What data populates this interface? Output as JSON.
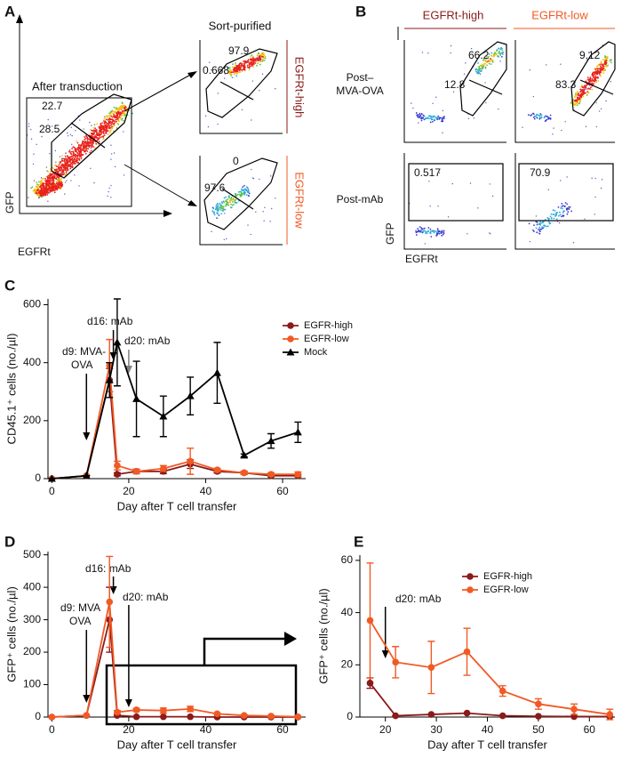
{
  "panel_labels": [
    "A",
    "B",
    "C",
    "D",
    "E"
  ],
  "flow": {
    "a": {
      "title": "After transduction",
      "gates": [
        "22.7",
        "28.5"
      ],
      "x_label": "EGFRt",
      "y_label": "GFP",
      "sorted_title": "Sort-purified",
      "sorted": [
        {
          "label": "EGFRt-high",
          "gates": [
            "97.9",
            "0.668"
          ]
        },
        {
          "label": "EGFRt-low",
          "gates": [
            "0",
            "97.6"
          ]
        }
      ]
    },
    "b": {
      "columns": [
        "EGFRt-high",
        "EGFRt-low"
      ],
      "x_label": "EGFRt",
      "y_label": "GFP",
      "rows": [
        {
          "label": [
            "Post–",
            "MVA-OVA"
          ],
          "gates": [
            [
              "66.2",
              "12.8"
            ],
            [
              "9.12",
              "83.3"
            ]
          ]
        },
        {
          "label": [
            "Post-mAb"
          ],
          "gates": [
            [
              "0.517"
            ],
            [
              "70.9"
            ]
          ]
        }
      ]
    }
  },
  "chart_data": [
    {
      "type": "line",
      "label": "C",
      "x_label": "Day after T cell transfer",
      "y_label": "CD45.1⁺ cells (no./µl)",
      "xlim": [
        -1,
        66
      ],
      "xticks": [
        0,
        20,
        40,
        60
      ],
      "ylim": [
        0,
        620
      ],
      "yticks": [
        0,
        200,
        400,
        600
      ],
      "x": [
        0,
        9,
        15,
        17,
        22,
        29,
        36,
        43,
        50,
        57,
        64
      ],
      "series": [
        {
          "name": "EGFR-high",
          "color": "#8b1a1a",
          "marker": "circle",
          "values": [
            0,
            10,
            340,
            15,
            25,
            25,
            50,
            25,
            20,
            10,
            10
          ],
          "errors": [
            0,
            0,
            40,
            5,
            8,
            8,
            15,
            6,
            5,
            4,
            4
          ]
        },
        {
          "name": "EGFR-low",
          "color": "#f15a24",
          "marker": "circle",
          "values": [
            0,
            10,
            390,
            45,
            25,
            35,
            60,
            30,
            20,
            15,
            15
          ],
          "errors": [
            0,
            0,
            90,
            15,
            8,
            10,
            45,
            6,
            5,
            5,
            8
          ]
        },
        {
          "name": "Mock",
          "color": "#000000",
          "marker": "triangle",
          "values": [
            0,
            10,
            340,
            470,
            275,
            215,
            285,
            365,
            80,
            130,
            160
          ],
          "errors": [
            0,
            0,
            60,
            150,
            130,
            70,
            65,
            105,
            5,
            25,
            35
          ]
        }
      ],
      "annotations": [
        {
          "lines": [
            "d9: MVA-",
            "OVA"
          ],
          "x": 9,
          "color": "#000000"
        },
        {
          "lines": [
            "d16: mAb"
          ],
          "x": 16,
          "color": "#000000"
        },
        {
          "lines": [
            "d20: mAb"
          ],
          "x": 20,
          "color": "#808080"
        }
      ],
      "legend": "upper right"
    },
    {
      "type": "line",
      "label": "D",
      "x_label": "Day after T cell transfer",
      "y_label": "GFP⁺ cells (no./µl)",
      "xlim": [
        -1,
        66
      ],
      "xticks": [
        0,
        20,
        40,
        60
      ],
      "ylim": [
        0,
        510
      ],
      "yticks": [
        0,
        100,
        200,
        300,
        400,
        500
      ],
      "x": [
        0,
        9,
        15,
        17,
        22,
        29,
        36,
        43,
        50,
        57,
        64
      ],
      "series": [
        {
          "color": "#8b1a1a",
          "marker": "circle",
          "values": [
            0,
            5,
            300,
            5,
            1,
            1,
            1,
            0,
            0,
            0,
            0
          ],
          "errors": [
            0,
            0,
            100,
            3,
            0,
            0,
            0,
            0,
            0,
            0,
            0
          ]
        },
        {
          "color": "#f15a24",
          "marker": "circle",
          "values": [
            0,
            5,
            355,
            15,
            22,
            20,
            25,
            10,
            5,
            3,
            1
          ],
          "errors": [
            0,
            0,
            140,
            5,
            5,
            8,
            8,
            2,
            2,
            2,
            2
          ]
        }
      ],
      "annotations": [
        {
          "lines": [
            "d9: MVA",
            "OVA"
          ],
          "x": 9,
          "color": "#000000"
        },
        {
          "lines": [
            "d16: mAb"
          ],
          "x": 16,
          "color": "#000000"
        },
        {
          "lines": [
            "d20: mAb"
          ],
          "x": 20,
          "color": "#000000"
        }
      ]
    },
    {
      "type": "line",
      "label": "E",
      "x_label": "Day after T cell transfer",
      "y_label": "GFP⁺ cells (no./µl)",
      "xlim": [
        15,
        65
      ],
      "xticks": [
        20,
        30,
        40,
        50,
        60
      ],
      "ylim": [
        0,
        62
      ],
      "yticks": [
        0,
        20,
        40,
        60
      ],
      "x": [
        17,
        22,
        29,
        36,
        43,
        50,
        57,
        64
      ],
      "series": [
        {
          "name": "EGFR-high",
          "color": "#8b1a1a",
          "marker": "circle",
          "values": [
            13,
            0.5,
            1,
            1.5,
            0.5,
            0.3,
            0.2,
            0.2
          ],
          "errors": [
            2,
            0,
            0,
            0,
            0,
            0,
            0,
            0
          ]
        },
        {
          "name": "EGFR-low",
          "color": "#f15a24",
          "marker": "circle",
          "values": [
            37,
            21,
            19,
            25,
            10,
            5,
            3,
            1
          ],
          "errors": [
            22,
            6,
            10,
            9,
            2,
            2,
            2,
            2
          ]
        }
      ],
      "annotations": [
        {
          "lines": [
            "d20: mAb"
          ],
          "x": 20,
          "color": "#000000"
        }
      ],
      "legend": "upper right"
    }
  ]
}
